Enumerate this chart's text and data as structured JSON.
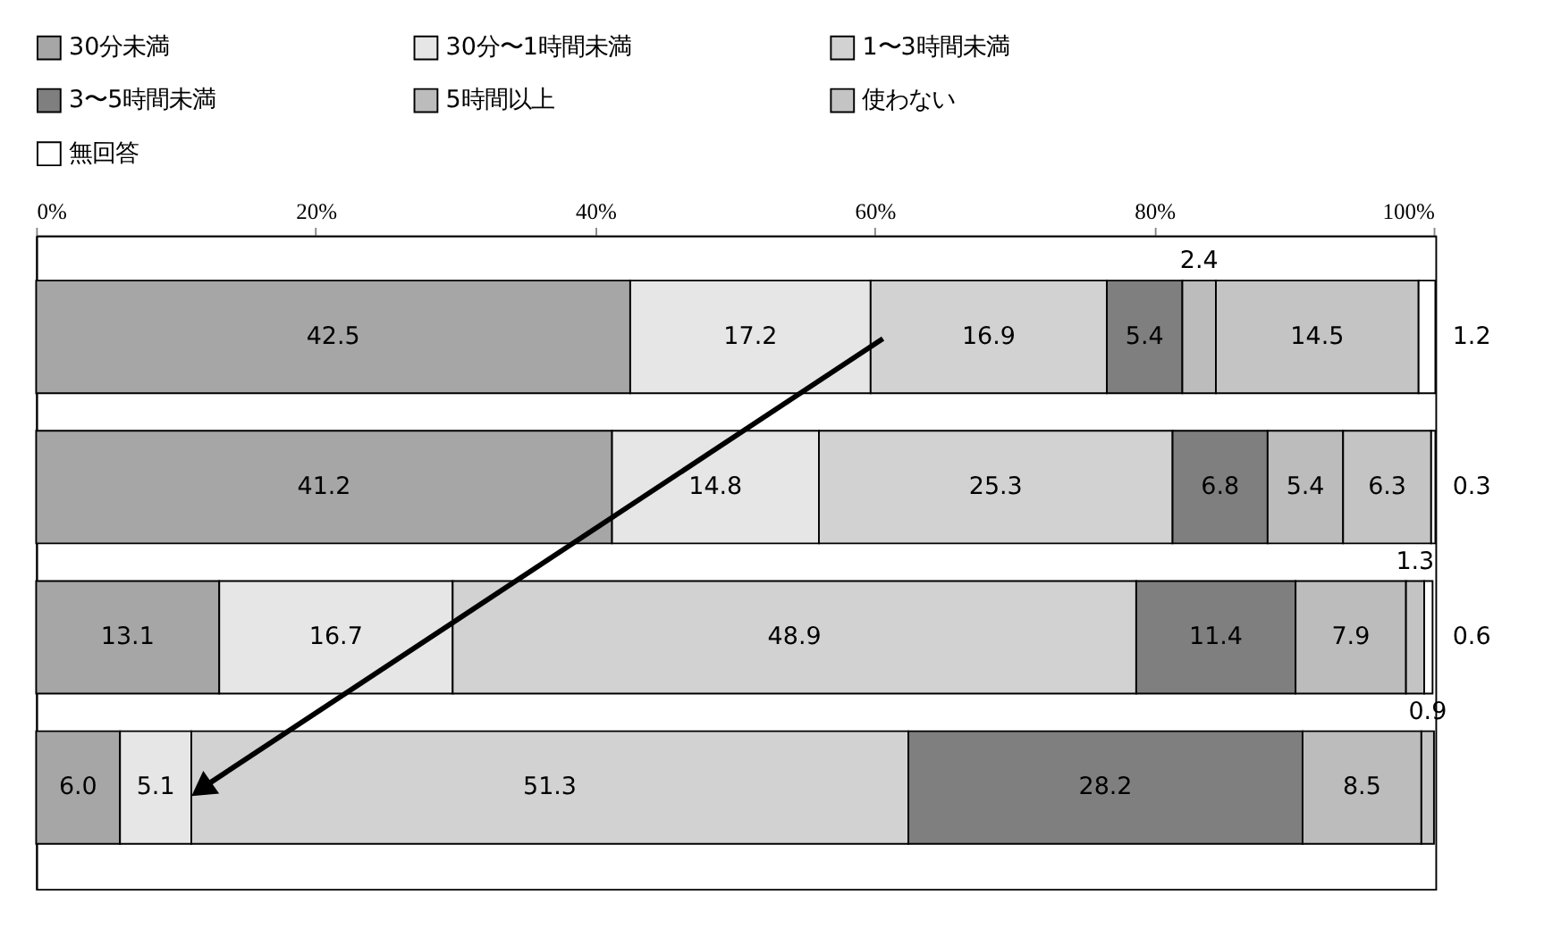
{
  "chart_data": {
    "type": "bar",
    "orientation": "horizontal",
    "stacked": true,
    "categories": [
      null,
      null,
      null,
      null
    ],
    "series": [
      {
        "name": "30分未満",
        "color": "#a6a6a6",
        "values": [
          42.5,
          41.2,
          13.1,
          6.0
        ]
      },
      {
        "name": "30分〜1時間未満",
        "color": "#e6e6e6",
        "values": [
          17.2,
          14.8,
          16.7,
          5.1
        ]
      },
      {
        "name": "1〜3時間未満",
        "color": "#d2d2d2",
        "values": [
          16.9,
          25.3,
          48.9,
          51.3
        ]
      },
      {
        "name": "3〜5時間未満",
        "color": "#7f7f7f",
        "values": [
          5.4,
          6.8,
          11.4,
          28.2
        ]
      },
      {
        "name": "5時間以上",
        "color": "#bcbcbc",
        "values": [
          2.4,
          5.4,
          7.9,
          8.5
        ]
      },
      {
        "name": "使わない",
        "color": "#c4c4c4",
        "values": [
          14.5,
          6.3,
          1.3,
          0.9
        ]
      },
      {
        "name": "無回答",
        "color": "#ffffff",
        "values": [
          1.2,
          0.3,
          0.6,
          null
        ]
      }
    ],
    "xlim": [
      0,
      100.1
    ],
    "xticks": [
      {
        "value": 0,
        "label": "0%"
      },
      {
        "value": 20,
        "label": "20%"
      },
      {
        "value": 40,
        "label": "40%"
      },
      {
        "value": 60,
        "label": "60%"
      },
      {
        "value": 80,
        "label": "80%"
      },
      {
        "value": 100,
        "label": "100%"
      }
    ],
    "value_labels": [
      [
        "42.5",
        "41.2",
        "13.1",
        "6.0"
      ],
      [
        "17.2",
        "14.8",
        "16.7",
        "5.1"
      ],
      [
        "16.9",
        "25.3",
        "48.9",
        "51.3"
      ],
      [
        "5.4",
        "6.8",
        "11.4",
        "28.2"
      ],
      [
        "2.4",
        "5.4",
        "7.9",
        "8.5"
      ],
      [
        "14.5",
        "6.3",
        "1.3",
        "0.9"
      ],
      [
        "1.2",
        "0.3",
        "0.6",
        null
      ]
    ],
    "legend": "top",
    "grid": false,
    "tick_labels": "x"
  }
}
